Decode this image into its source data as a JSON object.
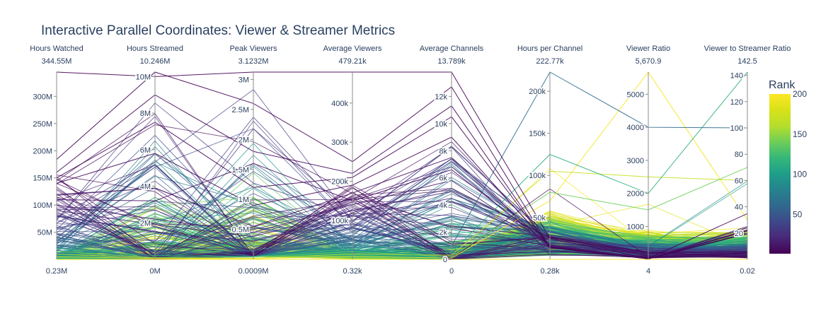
{
  "title": "Interactive Parallel Coordinates: Viewer & Streamer Metrics",
  "chart_data": {
    "type": "parallel_coordinates",
    "title": "Interactive Parallel Coordinates: Viewer & Streamer Metrics",
    "dimensions": [
      {
        "label": "Hours Watched",
        "max_label": "344.55M",
        "min_label": "0.23M",
        "range": [
          0.23,
          344.55
        ],
        "ticks": [
          {
            "v": 50,
            "t": "50M"
          },
          {
            "v": 100,
            "t": "100M"
          },
          {
            "v": 150,
            "t": "150M"
          },
          {
            "v": 200,
            "t": "200M"
          },
          {
            "v": 250,
            "t": "250M"
          },
          {
            "v": 300,
            "t": "300M"
          }
        ]
      },
      {
        "label": "Hours Streamed",
        "max_label": "10.246M",
        "min_label": "0M",
        "range": [
          0,
          10.246
        ],
        "ticks": [
          {
            "v": 2,
            "t": "2M"
          },
          {
            "v": 4,
            "t": "4M"
          },
          {
            "v": 6,
            "t": "6M"
          },
          {
            "v": 8,
            "t": "8M"
          },
          {
            "v": 10,
            "t": "10M"
          }
        ]
      },
      {
        "label": "Peak Viewers",
        "max_label": "3.1232M",
        "min_label": "0.0009M",
        "range": [
          0.0009,
          3.1232
        ],
        "ticks": [
          {
            "v": 0.5,
            "t": "0.5M"
          },
          {
            "v": 1,
            "t": "1M"
          },
          {
            "v": 1.5,
            "t": "1.5M"
          },
          {
            "v": 2,
            "t": "2M"
          },
          {
            "v": 2.5,
            "t": "2.5M"
          },
          {
            "v": 3,
            "t": "3M"
          }
        ]
      },
      {
        "label": "Average Viewers",
        "max_label": "479.21k",
        "min_label": "0.32k",
        "range": [
          0.32,
          479.21
        ],
        "ticks": [
          {
            "v": 100,
            "t": "100k"
          },
          {
            "v": 200,
            "t": "200k"
          },
          {
            "v": 300,
            "t": "300k"
          },
          {
            "v": 400,
            "t": "400k"
          }
        ]
      },
      {
        "label": "Average Channels",
        "max_label": "13.789k",
        "min_label": "0",
        "range": [
          0,
          13.789
        ],
        "ticks": [
          {
            "v": 0,
            "t": "0"
          },
          {
            "v": 2,
            "t": "2k"
          },
          {
            "v": 4,
            "t": "4k"
          },
          {
            "v": 6,
            "t": "6k"
          },
          {
            "v": 8,
            "t": "8k"
          },
          {
            "v": 10,
            "t": "10k"
          },
          {
            "v": 12,
            "t": "12k"
          }
        ]
      },
      {
        "label": "Hours per Channel",
        "max_label": "222.77k",
        "min_label": "0.28k",
        "range": [
          0.28,
          222.77
        ],
        "ticks": [
          {
            "v": 50,
            "t": "50k"
          },
          {
            "v": 100,
            "t": "100k"
          },
          {
            "v": 150,
            "t": "150k"
          },
          {
            "v": 200,
            "t": "200k"
          }
        ]
      },
      {
        "label": "Viewer Ratio",
        "max_label": "5,670.9",
        "min_label": "4",
        "range": [
          4,
          5670.9
        ],
        "ticks": [
          {
            "v": 1000,
            "t": "1000"
          },
          {
            "v": 2000,
            "t": "2000"
          },
          {
            "v": 3000,
            "t": "3000"
          },
          {
            "v": 4000,
            "t": "4000"
          },
          {
            "v": 5000,
            "t": "5000"
          }
        ]
      },
      {
        "label": "Viewer to Streamer Ratio",
        "max_label": "142.5",
        "min_label": "0.02",
        "range": [
          0.02,
          142.5
        ],
        "ticks": [
          {
            "v": 20,
            "t": "20"
          },
          {
            "v": 40,
            "t": "40"
          },
          {
            "v": 60,
            "t": "60"
          },
          {
            "v": 80,
            "t": "80"
          },
          {
            "v": 100,
            "t": "100"
          },
          {
            "v": 120,
            "t": "120"
          },
          {
            "v": 140,
            "t": "140"
          }
        ]
      }
    ],
    "color": {
      "title": "Rank",
      "colorscale": "Viridis",
      "range": [
        1,
        200
      ],
      "ticks": [
        50,
        100,
        150,
        200
      ]
    },
    "highlight_lines": [
      {
        "rank": 1,
        "values": [
          344.55,
          10.0,
          3.1232,
          479.21,
          13.789,
          25.0,
          35.0,
          34.8
        ]
      },
      {
        "rank": 2,
        "values": [
          184.0,
          10.246,
          2.6,
          250.0,
          12.7,
          14.5,
          20.0,
          20.0
        ]
      },
      {
        "rank": 3,
        "values": [
          160.0,
          9.0,
          1.8,
          220.0,
          11.3,
          14.0,
          19.0,
          19.5
        ]
      },
      {
        "rank": 4,
        "values": [
          150.0,
          7.5,
          1.2,
          210.0,
          10.5,
          14.5,
          20.0,
          20.0
        ]
      },
      {
        "rank": 5,
        "values": [
          140.0,
          5.8,
          0.9,
          190.0,
          9.0,
          15.0,
          21.0,
          21.5
        ]
      },
      {
        "rank": 8,
        "values": [
          118.0,
          3.9,
          0.55,
          170.0,
          7.5,
          15.5,
          22.0,
          22.0
        ]
      },
      {
        "rank": 10,
        "values": [
          110.0,
          3.2,
          1.6,
          150.0,
          6.6,
          17.0,
          23.0,
          22.5
        ]
      },
      {
        "rank": 15,
        "values": [
          100.0,
          2.2,
          0.45,
          140.0,
          5.8,
          17.0,
          24.0,
          24.0
        ]
      },
      {
        "rank": 20,
        "values": [
          90.0,
          1.9,
          0.38,
          125.0,
          5.0,
          18.0,
          26.0,
          25.0
        ]
      },
      {
        "rank": 30,
        "values": [
          80.0,
          1.5,
          0.3,
          110.0,
          4.5,
          18.0,
          27.0,
          24.0
        ]
      },
      {
        "rank": 62,
        "values": [
          40.0,
          0.4,
          0.15,
          60.0,
          1.0,
          222.77,
          4000.0,
          100.0
        ]
      },
      {
        "rank": 115,
        "values": [
          20.0,
          0.2,
          0.05,
          28.0,
          0.5,
          125.0,
          2000.0,
          142.5
        ]
      },
      {
        "rank": 140,
        "values": [
          15.0,
          0.1,
          0.04,
          20.0,
          0.2,
          80.0,
          1500.0,
          70.0
        ]
      },
      {
        "rank": 170,
        "values": [
          10.0,
          0.08,
          0.02,
          14.0,
          0.3,
          105.0,
          2500.0,
          60.0
        ]
      },
      {
        "rank": 195,
        "values": [
          5.0,
          0.05,
          0.01,
          8.0,
          0.1,
          70.0,
          5670.9,
          30.0
        ]
      },
      {
        "rank": 200,
        "values": [
          0.23,
          0.0,
          0.0009,
          0.32,
          0.0,
          0.28,
          4.0,
          0.02
        ]
      }
    ]
  }
}
